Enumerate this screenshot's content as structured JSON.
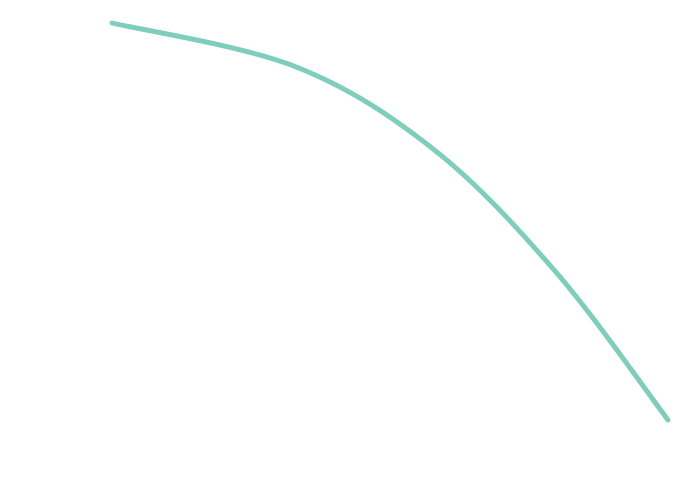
{
  "chart_data": {
    "type": "line",
    "title": "",
    "xlabel": "",
    "ylabel": "",
    "grid": false,
    "legend": "none",
    "xlim": [
      0,
      100
    ],
    "ylim": [
      0,
      100
    ],
    "series": [
      {
        "color": "#7fcdbb",
        "x": [
          0,
          33,
          58,
          80,
          100
        ],
        "y": [
          100,
          89,
          68,
          37,
          0
        ],
        "smooth": true
      }
    ]
  }
}
